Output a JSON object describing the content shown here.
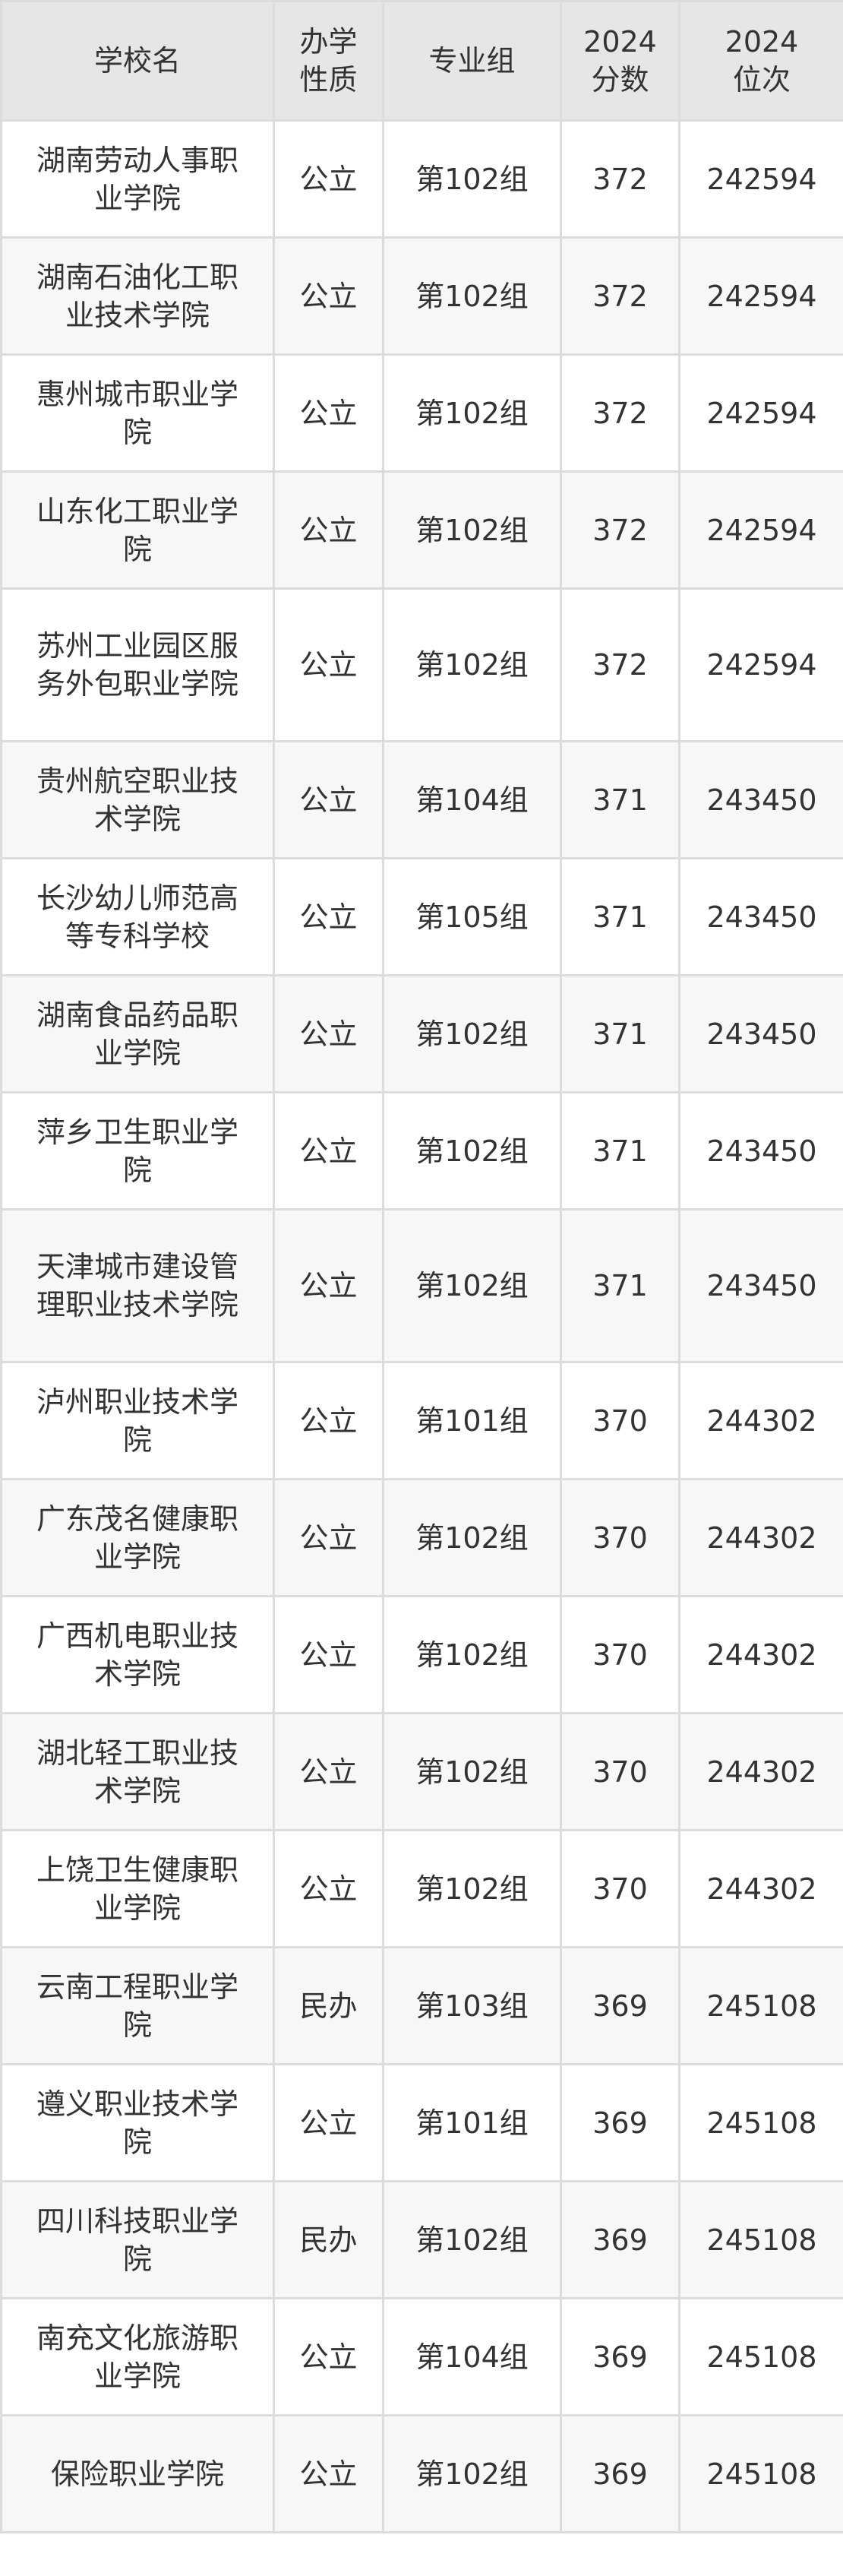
{
  "table": {
    "headers": [
      {
        "lines": [
          "学校名"
        ]
      },
      {
        "lines": [
          "办学",
          "性质"
        ]
      },
      {
        "lines": [
          "专业组"
        ]
      },
      {
        "lines": [
          "2024",
          "分数"
        ]
      },
      {
        "lines": [
          "2024",
          "位次"
        ]
      }
    ],
    "rows": [
      {
        "school": "湖南劳动人事职业学院",
        "type": "公立",
        "group": "第102组",
        "score": "372",
        "rank": "242594"
      },
      {
        "school": "湖南石油化工职业技术学院",
        "type": "公立",
        "group": "第102组",
        "score": "372",
        "rank": "242594"
      },
      {
        "school": "惠州城市职业学院",
        "type": "公立",
        "group": "第102组",
        "score": "372",
        "rank": "242594"
      },
      {
        "school": "山东化工职业学院",
        "type": "公立",
        "group": "第102组",
        "score": "372",
        "rank": "242594"
      },
      {
        "school": "苏州工业园区服务外包职业学院",
        "type": "公立",
        "group": "第102组",
        "score": "372",
        "rank": "242594"
      },
      {
        "school": "贵州航空职业技术学院",
        "type": "公立",
        "group": "第104组",
        "score": "371",
        "rank": "243450"
      },
      {
        "school": "长沙幼儿师范高等专科学校",
        "type": "公立",
        "group": "第105组",
        "score": "371",
        "rank": "243450"
      },
      {
        "school": "湖南食品药品职业学院",
        "type": "公立",
        "group": "第102组",
        "score": "371",
        "rank": "243450"
      },
      {
        "school": "萍乡卫生职业学院",
        "type": "公立",
        "group": "第102组",
        "score": "371",
        "rank": "243450"
      },
      {
        "school": "天津城市建设管理职业技术学院",
        "type": "公立",
        "group": "第102组",
        "score": "371",
        "rank": "243450"
      },
      {
        "school": "泸州职业技术学院",
        "type": "公立",
        "group": "第101组",
        "score": "370",
        "rank": "244302"
      },
      {
        "school": "广东茂名健康职业学院",
        "type": "公立",
        "group": "第102组",
        "score": "370",
        "rank": "244302"
      },
      {
        "school": "广西机电职业技术学院",
        "type": "公立",
        "group": "第102组",
        "score": "370",
        "rank": "244302"
      },
      {
        "school": "湖北轻工职业技术学院",
        "type": "公立",
        "group": "第102组",
        "score": "370",
        "rank": "244302"
      },
      {
        "school": "上饶卫生健康职业学院",
        "type": "公立",
        "group": "第102组",
        "score": "370",
        "rank": "244302"
      },
      {
        "school": "云南工程职业学院",
        "type": "民办",
        "group": "第103组",
        "score": "369",
        "rank": "245108"
      },
      {
        "school": "遵义职业技术学院",
        "type": "公立",
        "group": "第101组",
        "score": "369",
        "rank": "245108"
      },
      {
        "school": "四川科技职业学院",
        "type": "民办",
        "group": "第102组",
        "score": "369",
        "rank": "245108"
      },
      {
        "school": "南充文化旅游职业学院",
        "type": "公立",
        "group": "第104组",
        "score": "369",
        "rank": "245108"
      },
      {
        "school": "保险职业学院",
        "type": "公立",
        "group": "第102组",
        "score": "369",
        "rank": "245108"
      }
    ]
  }
}
